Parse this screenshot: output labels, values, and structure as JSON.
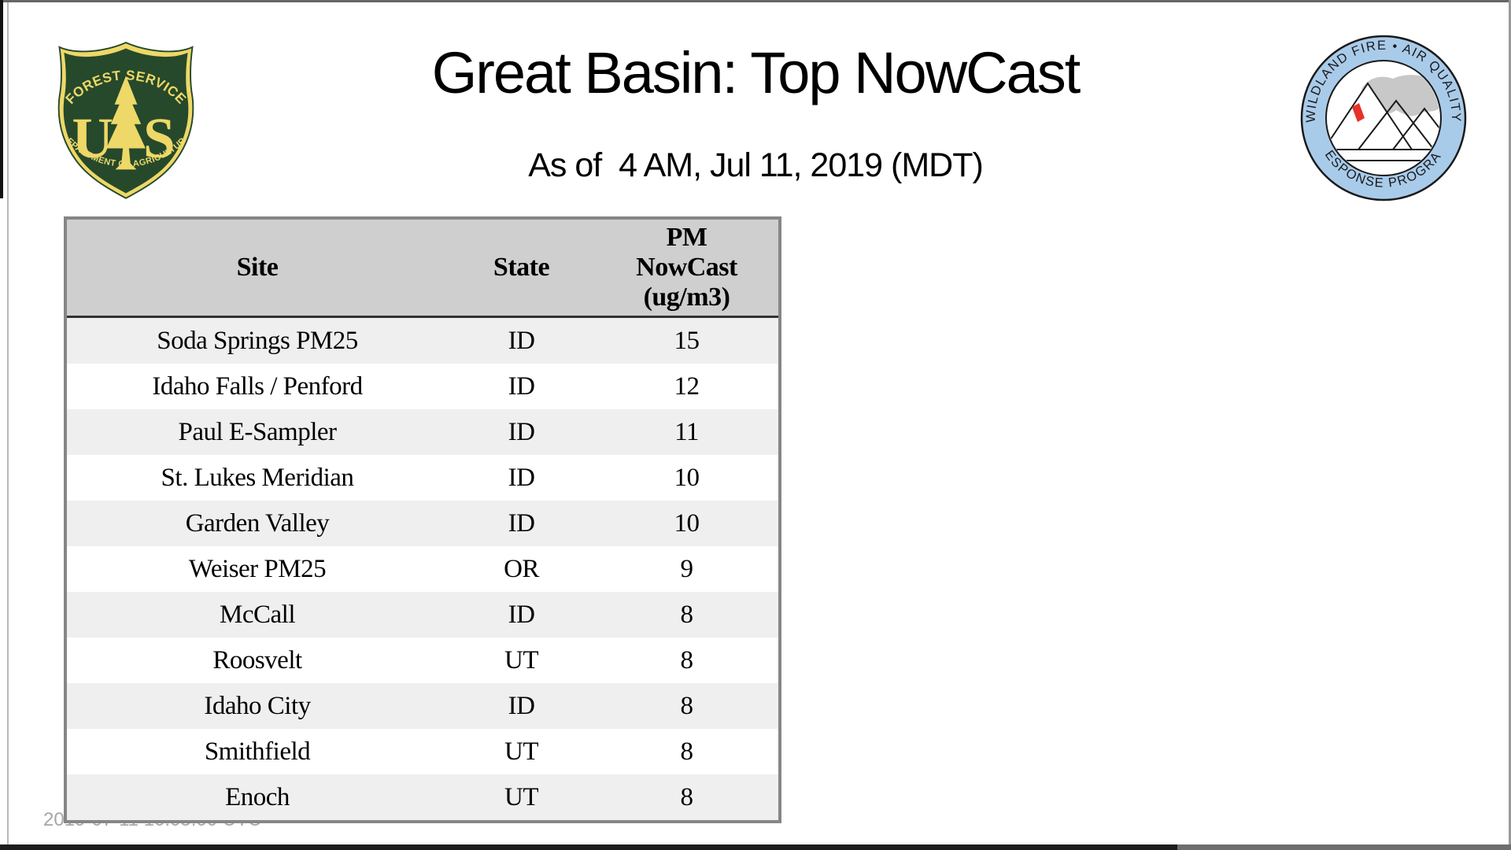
{
  "page": {
    "title": "Great Basin: Top NowCast",
    "subtitle": "As of  4 AM, Jul 11, 2019 (MDT)",
    "footer_timestamp": "2019-07-11 10:05:00 UTC"
  },
  "logos": {
    "forest_service": {
      "label": "US Forest Service shield",
      "top_text": "FOREST SERVICE",
      "monogram_left": "U",
      "monogram_right": "S",
      "bottom_text": "DEPARTMENT OF AGRICULTURE",
      "green": "#26492b",
      "gold": "#eed868"
    },
    "wfaqrp": {
      "label": "Wildland Fire Air Quality Response Program",
      "top_text": "WILDLAND FIRE • AIR QUALITY",
      "bottom_text": "RESPONSE PROGRAM",
      "ring_blue": "#a9cbea",
      "smoke_gray": "#c8c8c8",
      "flame_red": "#e63229"
    }
  },
  "table": {
    "headers": {
      "site": "Site",
      "state": "State",
      "pm": "PM\nNowCast\n(ug/m3)"
    },
    "rows": [
      {
        "site": "Soda Springs PM25",
        "state": "ID",
        "pm": "15"
      },
      {
        "site": "Idaho Falls / Penford",
        "state": "ID",
        "pm": "12"
      },
      {
        "site": "Paul E-Sampler",
        "state": "ID",
        "pm": "11"
      },
      {
        "site": "St. Lukes Meridian",
        "state": "ID",
        "pm": "10"
      },
      {
        "site": "Garden Valley",
        "state": "ID",
        "pm": "10"
      },
      {
        "site": "Weiser PM25",
        "state": "OR",
        "pm": "9"
      },
      {
        "site": "McCall",
        "state": "ID",
        "pm": "8"
      },
      {
        "site": "Roosvelt",
        "state": "UT",
        "pm": "8"
      },
      {
        "site": "Idaho City",
        "state": "ID",
        "pm": "8"
      },
      {
        "site": "Smithfield",
        "state": "UT",
        "pm": "8"
      },
      {
        "site": "Enoch",
        "state": "UT",
        "pm": "8"
      }
    ],
    "style": {
      "header_bg": "#cfcfcf",
      "row_odd_bg": "#efefef",
      "row_even_bg": "#ffffff",
      "outer_border": "#868686",
      "header_rule": "#333333"
    }
  }
}
